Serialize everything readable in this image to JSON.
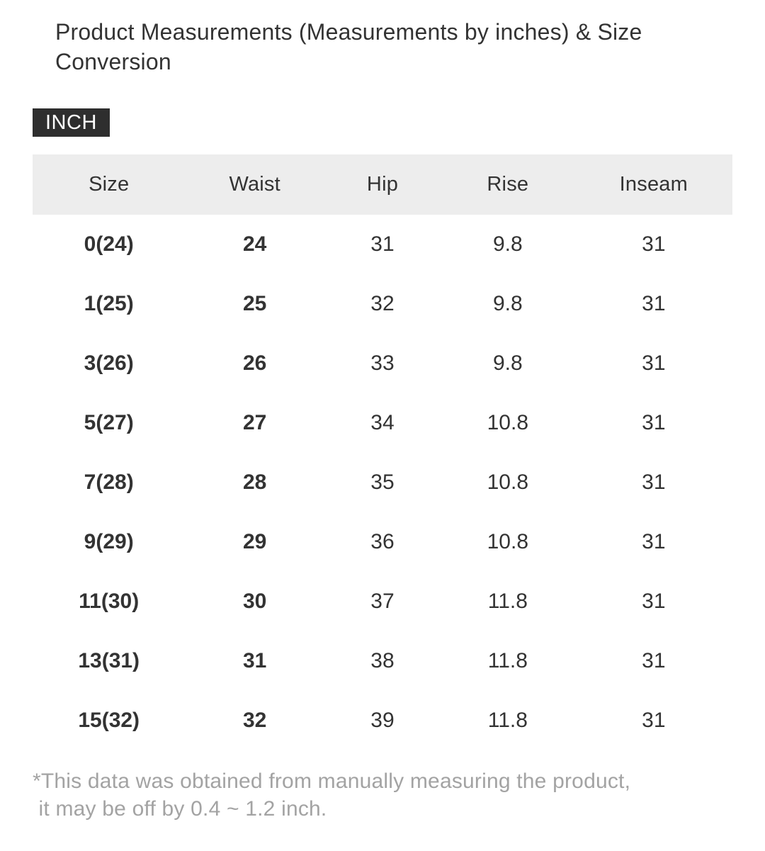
{
  "page": {
    "title": "Product Measurements (Measurements by inches) & Size Conversion",
    "unit_badge": "INCH",
    "footnote_line1": "*This data was obtained from manually measuring the product,",
    "footnote_line2": " it may be off by 0.4 ~ 1.2 inch."
  },
  "table": {
    "headers": [
      "Size",
      "Waist",
      "Hip",
      "Rise",
      "Inseam"
    ],
    "bold_columns": [
      0,
      1
    ],
    "rows": [
      [
        "0(24)",
        "24",
        "31",
        "9.8",
        "31"
      ],
      [
        "1(25)",
        "25",
        "32",
        "9.8",
        "31"
      ],
      [
        "3(26)",
        "26",
        "33",
        "9.8",
        "31"
      ],
      [
        "5(27)",
        "27",
        "34",
        "10.8",
        "31"
      ],
      [
        "7(28)",
        "28",
        "35",
        "10.8",
        "31"
      ],
      [
        "9(29)",
        "29",
        "36",
        "10.8",
        "31"
      ],
      [
        "11(30)",
        "30",
        "37",
        "11.8",
        "31"
      ],
      [
        "13(31)",
        "31",
        "38",
        "11.8",
        "31"
      ],
      [
        "15(32)",
        "32",
        "39",
        "11.8",
        "31"
      ]
    ]
  },
  "colors": {
    "text": "#333333",
    "header_bg": "#ededed",
    "badge_bg": "#2e2e2e",
    "badge_text": "#ffffff",
    "footnote": "#a3a3a3",
    "page_bg": "#ffffff"
  }
}
